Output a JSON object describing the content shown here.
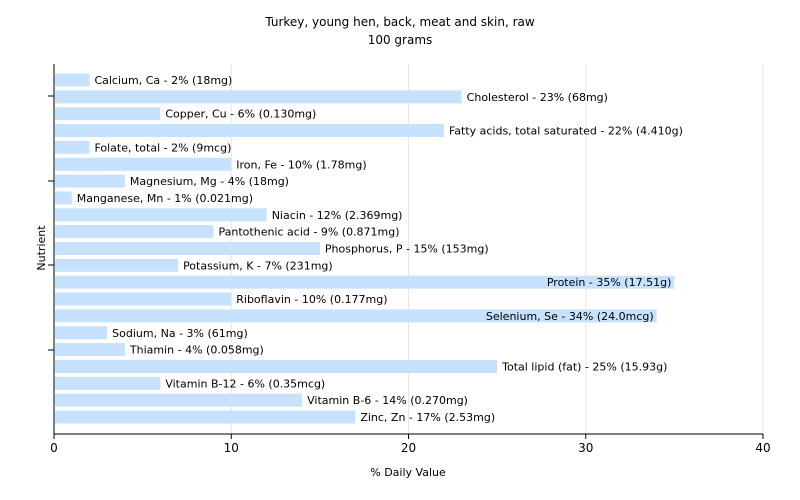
{
  "chart_data": {
    "type": "bar",
    "orientation": "horizontal",
    "title": "Turkey, young hen, back, meat and skin, raw",
    "subtitle": "100 grams",
    "xlabel": "% Daily Value",
    "ylabel": "Nutrient",
    "xlim": [
      0,
      40
    ],
    "xticks": [
      "0",
      "10",
      "20",
      "30",
      "40"
    ],
    "grid": "vertical",
    "bar_color": "#c6e2ff",
    "categories": [
      "Calcium, Ca",
      "Cholesterol",
      "Copper, Cu",
      "Fatty acids, total saturated",
      "Folate, total",
      "Iron, Fe",
      "Magnesium, Mg",
      "Manganese, Mn",
      "Niacin",
      "Pantothenic acid",
      "Phosphorus, P",
      "Potassium, K",
      "Protein",
      "Riboflavin",
      "Selenium, Se",
      "Sodium, Na",
      "Thiamin",
      "Total lipid (fat)",
      "Vitamin B-12",
      "Vitamin B-6",
      "Zinc, Zn"
    ],
    "values": [
      2,
      23,
      6,
      22,
      2,
      10,
      4,
      1,
      12,
      9,
      15,
      7,
      35,
      10,
      34,
      3,
      4,
      25,
      6,
      14,
      17
    ],
    "labels": [
      "Calcium, Ca - 2% (18mg)",
      "Cholesterol - 23% (68mg)",
      "Copper, Cu - 6% (0.130mg)",
      "Fatty acids, total saturated - 22% (4.410g)",
      "Folate, total - 2% (9mcg)",
      "Iron, Fe - 10% (1.78mg)",
      "Magnesium, Mg - 4% (18mg)",
      "Manganese, Mn - 1% (0.021mg)",
      "Niacin - 12% (2.369mg)",
      "Pantothenic acid - 9% (0.871mg)",
      "Phosphorus, P - 15% (153mg)",
      "Potassium, K - 7% (231mg)",
      "Protein - 35% (17.51g)",
      "Riboflavin - 10% (0.177mg)",
      "Selenium, Se - 34% (24.0mcg)",
      "Sodium, Na - 3% (61mg)",
      "Thiamin - 4% (0.058mg)",
      "Total lipid (fat) - 25% (15.93g)",
      "Vitamin B-12 - 6% (0.35mcg)",
      "Vitamin B-6 - 14% (0.270mg)",
      "Zinc, Zn - 17% (2.53mg)"
    ]
  }
}
